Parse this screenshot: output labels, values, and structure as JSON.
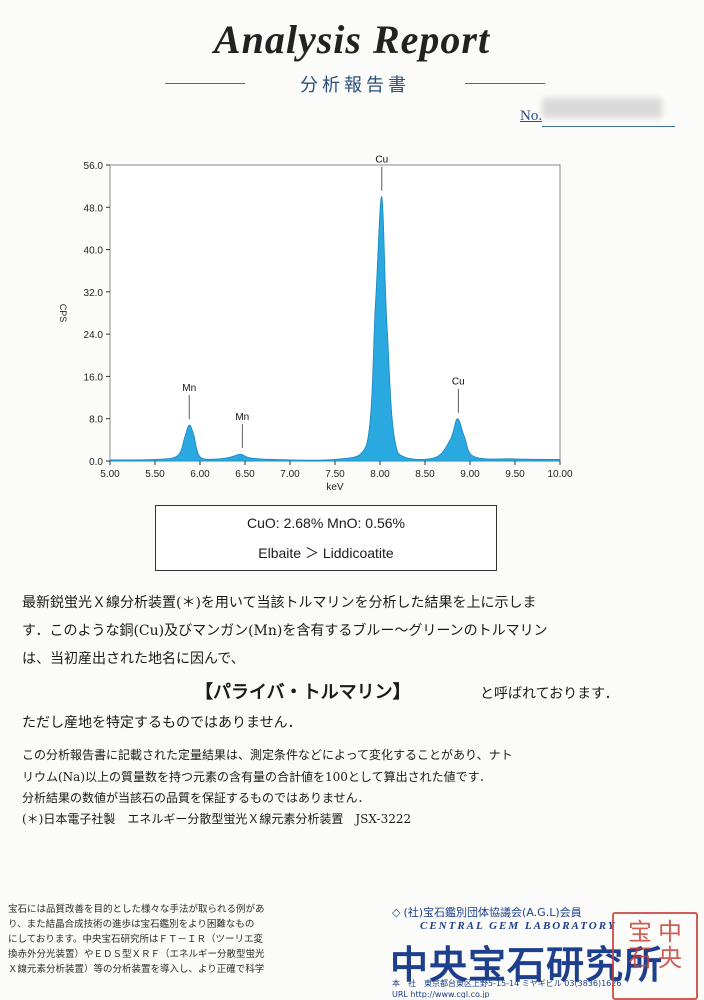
{
  "header": {
    "title": "Analysis  Report",
    "subtitle": "分析報告書",
    "no_label": "No."
  },
  "chart_data": {
    "type": "line",
    "title": "",
    "xlabel": "keV",
    "ylabel": "CPS",
    "xlim": [
      5.0,
      10.0
    ],
    "ylim": [
      0,
      56
    ],
    "x_ticks": [
      "5.00",
      "5.50",
      "6.00",
      "6.50",
      "7.00",
      "7.50",
      "8.00",
      "8.50",
      "9.00",
      "9.50",
      "10.00"
    ],
    "y_ticks": [
      "0.0",
      "8.0",
      "16.0",
      "24.0",
      "32.0",
      "40.0",
      "48.0",
      "56.0"
    ],
    "series": [
      {
        "x": [
          5.0,
          5.5,
          5.75,
          5.83,
          5.88,
          5.93,
          6.0,
          6.2,
          6.35,
          6.45,
          6.55,
          6.8,
          7.5,
          7.85,
          7.95,
          8.02,
          8.08,
          8.2,
          8.6,
          8.78,
          8.86,
          8.94,
          9.05,
          9.5,
          10.0
        ],
        "y": [
          0.2,
          0.3,
          1.0,
          4.5,
          6.8,
          5.0,
          0.8,
          0.4,
          0.8,
          1.3,
          0.6,
          0.3,
          0.3,
          3.0,
          30.0,
          50.0,
          25.0,
          1.5,
          0.6,
          4.0,
          8.0,
          4.5,
          0.8,
          0.4,
          0.3
        ]
      }
    ],
    "annotations": [
      {
        "text": "Mn",
        "x": 5.88,
        "y": 6.8
      },
      {
        "text": "Mn",
        "x": 6.47,
        "y": 1.3
      },
      {
        "text": "Cu",
        "x": 8.02,
        "y": 50.0
      },
      {
        "text": "Cu",
        "x": 8.87,
        "y": 8.0
      }
    ],
    "grid": false,
    "color": "#2aa8e0"
  },
  "result": {
    "composition": "CuO: 2.68%   MnO: 0.56%",
    "species": "Elbaite ＞ Liddicoatite"
  },
  "body": {
    "line1": "最新鋭蛍光Ｘ線分析装置(＊)を用いて当該トルマリンを分析した結果を上に示しま",
    "line2": "す．このような銅(Cu)及びマンガン(Mn)を含有するブルー～グリーンのトルマリン",
    "line3": "は、当初産出された地名に因んで、",
    "highlight": "【パライバ・トルマリン】",
    "highlight_tail": "と呼ばれております．",
    "line5": "ただし産地を特定するものではありません．",
    "note1": "この分析報告書に記載された定量結果は、測定条件などによって変化することがあり、ナト",
    "note2": "リウム(Na)以上の質量数を持つ元素の含有量の合計値を100として算出された値です．",
    "note3": "分析結果の数値が当該石の品質を保証するものではありません．",
    "instrument": "(＊)日本電子社製　エネルギー分散型蛍光Ｘ線元素分析装置　JSX-3222"
  },
  "footer": {
    "left_lines": [
      "宝石には品質改善を目的とした様々な手法が取られる例があ",
      "り、また結晶合成技術の進歩は宝石鑑別をより困難なもの",
      "にしております。中央宝石研究所はＦＴ－ＩＲ（ツーリエ変",
      "換赤外分光装置）やＥＤＳ型ＸＲＦ（エネルギー分散型蛍光",
      "Ｘ線元素分析装置）等の分析装置を導入し、より正確で科学"
    ],
    "agl": "(社)宝石鑑別団体協議会(A.G.L)会員",
    "lab_en": "CENTRAL GEM LABORATORY",
    "lab_ja": "中央宝石研究所",
    "address": "本　社　東京都台東区上野5-15-14  ミヤギビル 03(3836)1626",
    "url": "URL http://www.cgl.co.jp"
  },
  "seal_chars": [
    "中",
    "央",
    "宝",
    "石"
  ]
}
